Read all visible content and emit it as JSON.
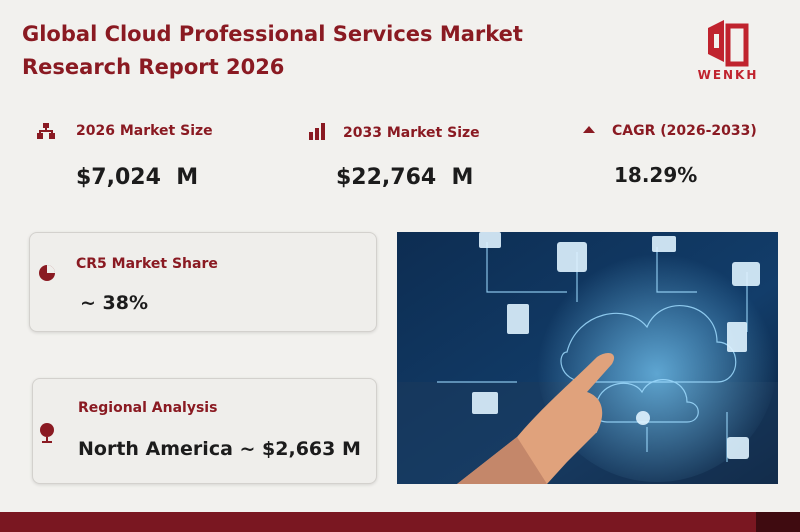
{
  "header": {
    "title": "Global Cloud Professional Services Market Research Report 2026",
    "logo": "WENKH"
  },
  "stats": [
    {
      "label": "2026 Market Size",
      "value": "$7,024  M"
    },
    {
      "label": "2033 Market Size",
      "value": "$22,764  M"
    },
    {
      "label": "CAGR (2026-2033)",
      "value": "18.29%"
    }
  ],
  "cards": [
    {
      "label": "CR5 Market Share",
      "value": "~ 38%"
    },
    {
      "label": "Regional Analysis",
      "value": "North America ~ $2,663 M"
    }
  ]
}
